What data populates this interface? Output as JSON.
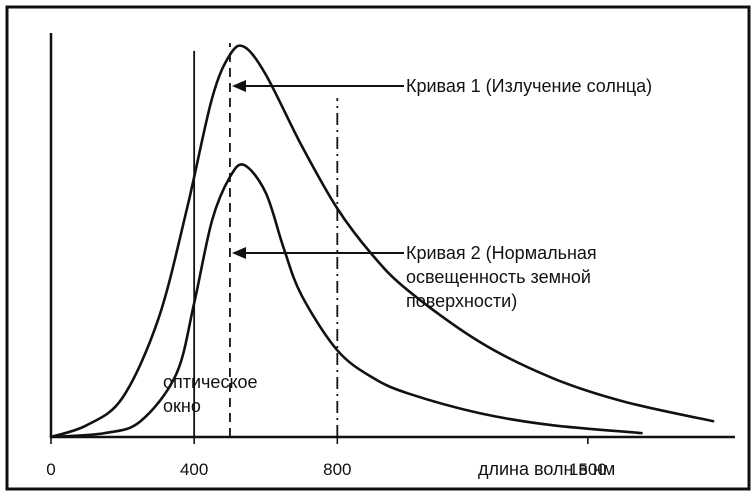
{
  "chart_data": {
    "type": "line",
    "xlabel": "длина волн в нм",
    "ylabel": "",
    "xlim": [
      0,
      1900
    ],
    "ylim": [
      0,
      1.0
    ],
    "x_ticks": [
      {
        "value": 0,
        "label": "0"
      },
      {
        "value": 400,
        "label": "400"
      },
      {
        "value": 800,
        "label": "800"
      },
      {
        "value": 1500,
        "label": "1500"
      }
    ],
    "grid": false,
    "series": [
      {
        "name": "Кривая 1 (Излучение солнца)",
        "x": [
          0,
          100,
          200,
          300,
          380,
          450,
          500,
          540,
          600,
          700,
          800,
          900,
          1000,
          1200,
          1400,
          1600,
          1850
        ],
        "values": [
          0,
          0.03,
          0.1,
          0.3,
          0.58,
          0.86,
          0.97,
          0.99,
          0.92,
          0.74,
          0.58,
          0.46,
          0.37,
          0.24,
          0.15,
          0.09,
          0.04
        ]
      },
      {
        "name": "Кривая 2 (Нормальная освещенность земной поверхности)",
        "x": [
          0,
          150,
          250,
          350,
          400,
          450,
          500,
          540,
          600,
          650,
          700,
          800,
          900,
          1000,
          1200,
          1400,
          1650
        ],
        "values": [
          0,
          0.01,
          0.04,
          0.16,
          0.34,
          0.55,
          0.66,
          0.69,
          0.62,
          0.48,
          0.36,
          0.22,
          0.15,
          0.11,
          0.06,
          0.03,
          0.01
        ]
      }
    ],
    "vlines": [
      {
        "x": 400,
        "ymax": 0.98,
        "style": "solid"
      },
      {
        "x": 500,
        "ymax": 1.0,
        "style": "dashed"
      },
      {
        "x": 800,
        "ymax": 0.86,
        "style": "dashdot"
      }
    ],
    "annotations": [
      {
        "text": "Кривая 1 (Излучение солнца)",
        "lines": [
          "Кривая 1 (Излучение солнца)"
        ]
      },
      {
        "text": "Кривая 2 (Нормальная освещенность земной поверхности)",
        "lines": [
          "Кривая 2 (Нормальная",
          "освещенность земной",
          "поверхности)"
        ]
      },
      {
        "text": "оптическое окно",
        "lines": [
          "оптическое",
          "окно"
        ]
      }
    ]
  }
}
